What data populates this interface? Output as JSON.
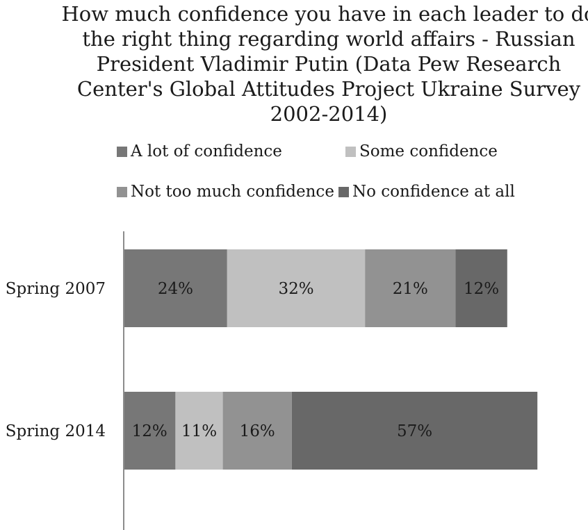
{
  "chart_data": {
    "type": "bar",
    "orientation": "horizontal",
    "stacked": true,
    "title": "How much confidence you have in each leader to do the right thing regarding world affairs - Russian President Vladimir Putin  (Data Pew Research Center's Global Attitudes Project Ukraine Survey 2002-2014)",
    "title_lines": [
      "How much confidence you have in each leader to do",
      "the right thing regarding world affairs - Russian",
      "President Vladimir Putin  (Data Pew Research",
      "Center's Global Attitudes Project Ukraine Survey",
      "2002-2014)"
    ],
    "categories": [
      "Spring 2007",
      "Spring 2014"
    ],
    "series": [
      {
        "name": "A lot of confidence",
        "values": [
          24,
          12
        ],
        "labels": [
          "24%",
          "12%"
        ],
        "color": "#777777"
      },
      {
        "name": "Some confidence",
        "values": [
          32,
          11
        ],
        "labels": [
          "32%",
          "11%"
        ],
        "color": "#c0c0c0"
      },
      {
        "name": "Not too much confidence",
        "values": [
          21,
          16
        ],
        "labels": [
          "21%",
          "16%"
        ],
        "color": "#929292"
      },
      {
        "name": "No confidence at all",
        "values": [
          12,
          57
        ],
        "labels": [
          "12%",
          "57%"
        ],
        "color": "#686868"
      }
    ],
    "legend_position": "top",
    "grid": false,
    "xlim": [
      0,
      100
    ]
  }
}
